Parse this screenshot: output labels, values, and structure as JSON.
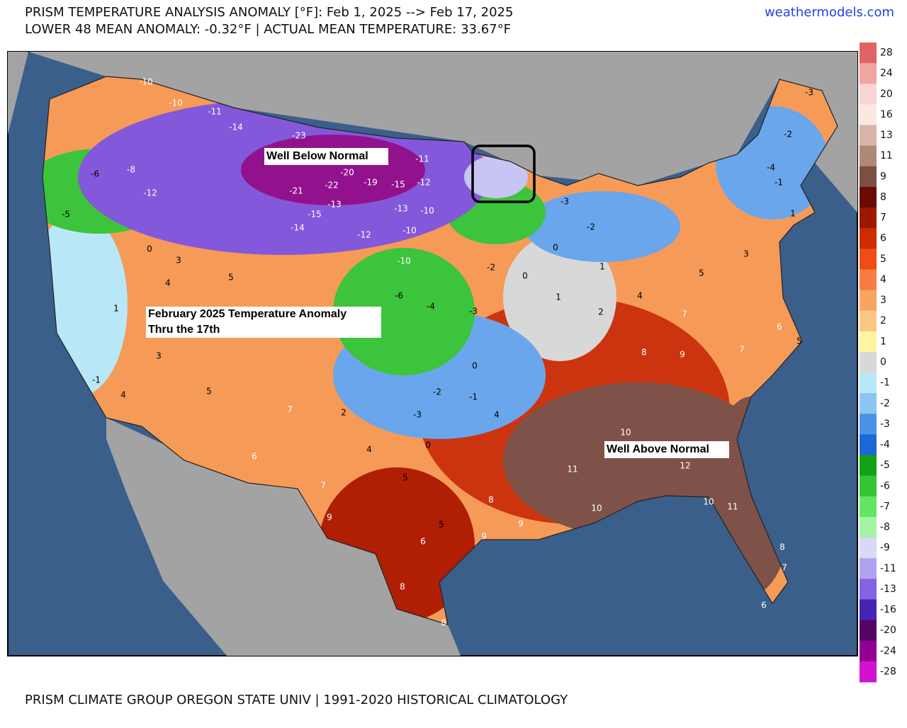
{
  "header": {
    "title": "PRISM TEMPERATURE ANALYSIS ANOMALY [°F]: Feb 1, 2025 --> Feb 17, 2025",
    "subtitle": "LOWER 48 MEAN ANOMALY: -0.32°F | ACTUAL MEAN TEMPERATURE: 33.67°F",
    "site": "weathermodels.com"
  },
  "annotations": [
    "Well Below Normal",
    "February 2025 Temperature Anomaly",
    "Thru the 17th",
    "Well Above Normal"
  ],
  "footer": "PRISM CLIMATE GROUP OREGON STATE UNIV | 1991-2020 HISTORICAL CLIMATOLOGY",
  "colorbar": {
    "ticks": [
      28,
      24,
      20,
      16,
      13,
      11,
      9,
      8,
      7,
      6,
      5,
      4,
      3,
      2,
      1,
      0,
      -1,
      -2,
      -3,
      -4,
      -5,
      -6,
      -7,
      -8,
      -9,
      -11,
      -13,
      -16,
      -20,
      -24,
      -28
    ],
    "colors": [
      "#e06464",
      "#f0a4a4",
      "#f8d4d4",
      "#fbe8e2",
      "#d8b4a8",
      "#b08878",
      "#7a5044",
      "#6a0a00",
      "#9c1800",
      "#cc2c00",
      "#f04c14",
      "#f67c42",
      "#f8a462",
      "#fac884",
      "#fff4a0",
      "#d8d8d8",
      "#b8e8f8",
      "#8cc4f2",
      "#4c92e8",
      "#1a68d8",
      "#14a014",
      "#34c434",
      "#64e464",
      "#a4f4a4",
      "#d8d8f8",
      "#b0a2f2",
      "#8464e2",
      "#4424b4",
      "#540464",
      "#920092",
      "#d012d0"
    ]
  },
  "map_labels": [
    -10,
    -10,
    -11,
    -14,
    -23,
    -20,
    -22,
    -21,
    -19,
    -15,
    -12,
    -11,
    -13,
    -15,
    -14,
    -12,
    -13,
    -10,
    -10,
    -10,
    -12,
    -8,
    -6,
    -5,
    0,
    3,
    4,
    5,
    -6,
    -4,
    -3,
    -2,
    0,
    1,
    2,
    4,
    5,
    7,
    8,
    9,
    7,
    6,
    5,
    10,
    11,
    12,
    10,
    11,
    10,
    9,
    6,
    8,
    8,
    5,
    5,
    4,
    2,
    6,
    5,
    7,
    3,
    1,
    -1,
    4,
    -3,
    -2,
    0,
    -1,
    0,
    4,
    8,
    9,
    8,
    7,
    6,
    7,
    9,
    -2,
    -3,
    0,
    1,
    -1,
    1,
    3,
    -3,
    -2,
    -4
  ]
}
